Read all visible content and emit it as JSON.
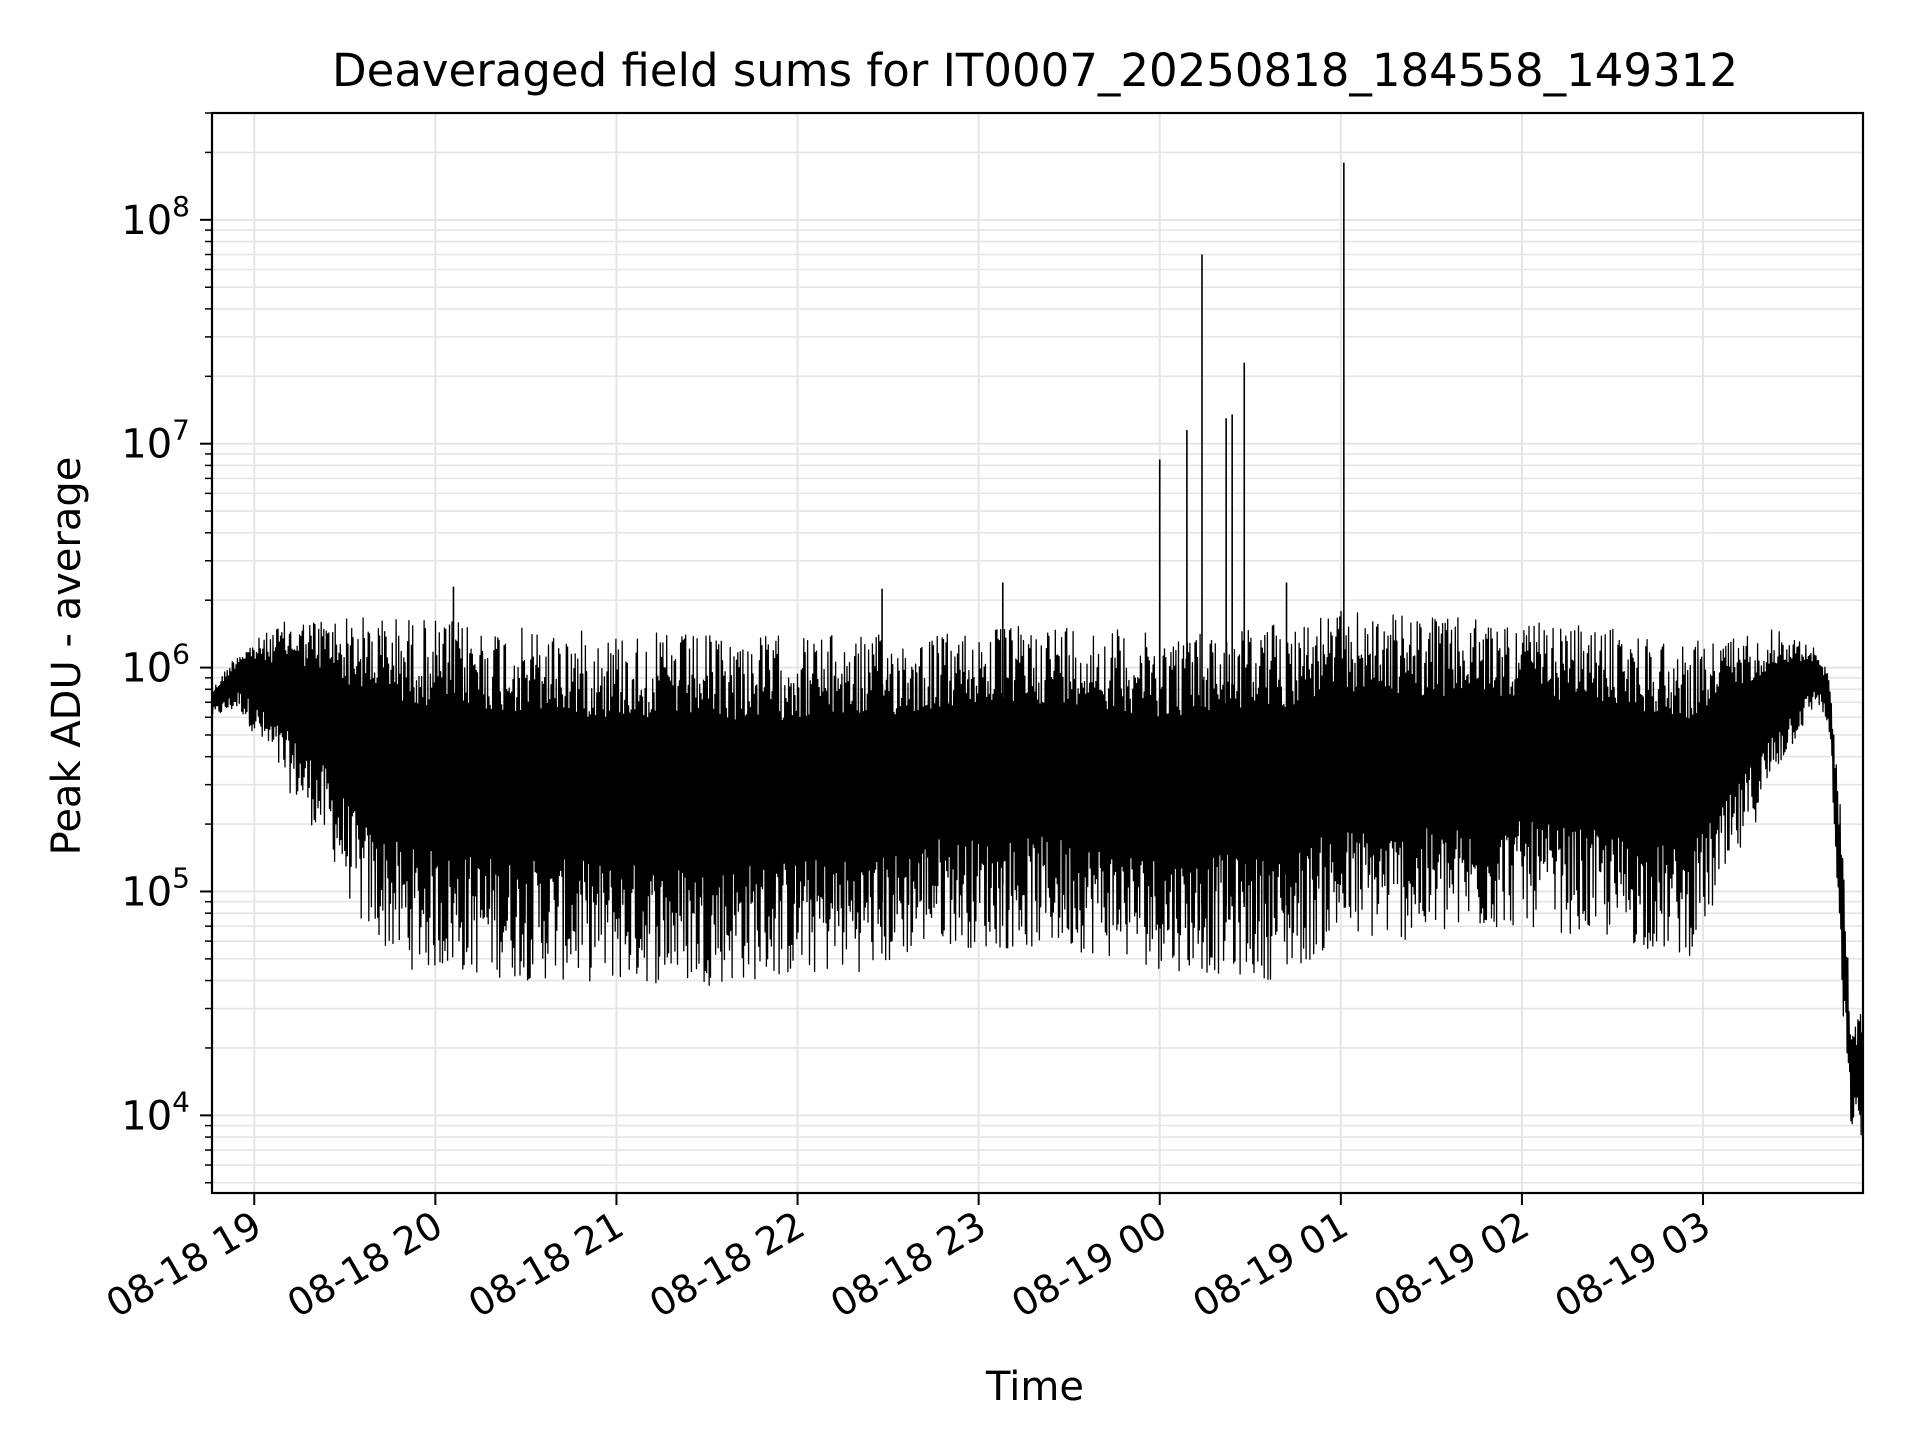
{
  "chart_data": {
    "type": "line",
    "title": "Deaveraged field sums for IT0007_20250818_184558_149312",
    "xlabel": "Time",
    "ylabel": "Peak ADU - average",
    "xscale": "time",
    "yscale": "log",
    "xlim": [
      "2025-08-18 18:46",
      "2025-08-19 03:53"
    ],
    "ylim": [
      4500,
      300000000
    ],
    "x_ticks": [
      "08-18 19",
      "08-18 20",
      "08-18 21",
      "08-18 22",
      "08-18 23",
      "08-19 00",
      "08-19 01",
      "08-19 02",
      "08-19 03"
    ],
    "y_ticks": [
      {
        "value": 10000,
        "base": "10",
        "exp": "4"
      },
      {
        "value": 100000,
        "base": "10",
        "exp": "5"
      },
      {
        "value": 1000000,
        "base": "10",
        "exp": "6"
      },
      {
        "value": 10000000,
        "base": "10",
        "exp": "7"
      },
      {
        "value": 100000000,
        "base": "10",
        "exp": "8"
      }
    ],
    "grid": true,
    "line_color": "#000000",
    "grid_color": "#e5e5e5",
    "series": [
      {
        "envelope": [
          {
            "x": "2025-08-18 18:46",
            "low": 600000,
            "high": 800000
          },
          {
            "x": "2025-08-18 18:55",
            "low": 650000,
            "high": 1200000
          },
          {
            "x": "2025-08-18 19:10",
            "low": 300000,
            "high": 1600000
          },
          {
            "x": "2025-08-18 19:25",
            "low": 150000,
            "high": 1700000
          },
          {
            "x": "2025-08-18 19:35",
            "low": 70000,
            "high": 1700000
          },
          {
            "x": "2025-08-18 19:50",
            "low": 45000,
            "high": 1700000
          },
          {
            "x": "2025-08-18 20:30",
            "low": 40000,
            "high": 1500000
          },
          {
            "x": "2025-08-18 21:30",
            "low": 38000,
            "high": 1400000
          },
          {
            "x": "2025-08-18 22:30",
            "low": 45000,
            "high": 1400000
          },
          {
            "x": "2025-08-18 22:45",
            "low": 60000,
            "high": 1400000
          },
          {
            "x": "2025-08-18 23:00",
            "low": 55000,
            "high": 1500000
          },
          {
            "x": "2025-08-18 23:30",
            "low": 55000,
            "high": 1600000
          },
          {
            "x": "2025-08-19 00:00",
            "low": 45000,
            "high": 1400000
          },
          {
            "x": "2025-08-19 00:40",
            "low": 40000,
            "high": 1600000
          },
          {
            "x": "2025-08-19 01:00",
            "low": 60000,
            "high": 1800000
          },
          {
            "x": "2025-08-19 01:30",
            "low": 60000,
            "high": 1700000
          },
          {
            "x": "2025-08-19 02:00",
            "low": 70000,
            "high": 1600000
          },
          {
            "x": "2025-08-19 02:30",
            "low": 60000,
            "high": 1500000
          },
          {
            "x": "2025-08-19 02:55",
            "low": 50000,
            "high": 1300000
          },
          {
            "x": "2025-08-19 03:10",
            "low": 120000,
            "high": 1400000
          },
          {
            "x": "2025-08-19 03:25",
            "low": 350000,
            "high": 1500000
          },
          {
            "x": "2025-08-19 03:38",
            "low": 700000,
            "high": 1200000
          },
          {
            "x": "2025-08-19 03:42",
            "low": 500000,
            "high": 900000
          },
          {
            "x": "2025-08-19 03:46",
            "low": 30000,
            "high": 200000
          },
          {
            "x": "2025-08-19 03:49",
            "low": 9000,
            "high": 25000
          },
          {
            "x": "2025-08-19 03:53",
            "low": 7500,
            "high": 30000
          }
        ],
        "spikes": [
          {
            "x": "2025-08-18 20:06",
            "y": 2300000
          },
          {
            "x": "2025-08-18 22:28",
            "y": 2250000
          },
          {
            "x": "2025-08-18 23:08",
            "y": 2400000
          },
          {
            "x": "2025-08-19 00:00",
            "y": 8500000
          },
          {
            "x": "2025-08-19 00:09",
            "y": 11500000
          },
          {
            "x": "2025-08-19 00:14",
            "y": 70000000
          },
          {
            "x": "2025-08-19 00:22",
            "y": 13000000
          },
          {
            "x": "2025-08-19 00:24",
            "y": 13500000
          },
          {
            "x": "2025-08-19 00:28",
            "y": 23000000
          },
          {
            "x": "2025-08-19 00:42",
            "y": 2400000
          },
          {
            "x": "2025-08-19 01:01",
            "y": 180000000
          }
        ]
      }
    ]
  }
}
